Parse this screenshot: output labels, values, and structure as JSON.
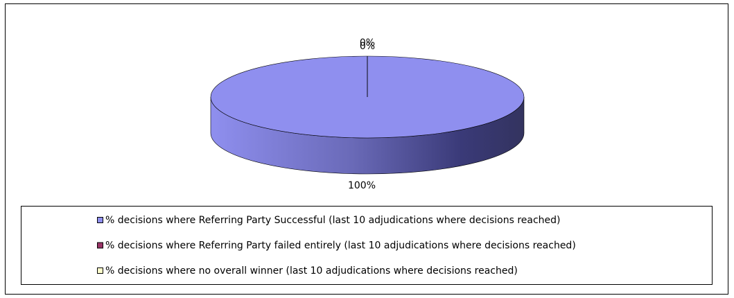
{
  "chart_data": {
    "type": "pie",
    "categories": [
      "% decisions where Referring Party Successful (last 10 adjudications where decisions reached)",
      "% decisions where Referring Party failed entirely (last 10 adjudications where decisions reached)",
      "% decisions where no overall winner (last 10 adjudications where decisions reached)"
    ],
    "values": [
      100,
      0,
      0
    ],
    "value_labels": [
      "100%",
      "0%",
      "0%"
    ],
    "colors": [
      "#8f8fef",
      "#993366",
      "#ffffcc"
    ],
    "legend": "bottom"
  }
}
